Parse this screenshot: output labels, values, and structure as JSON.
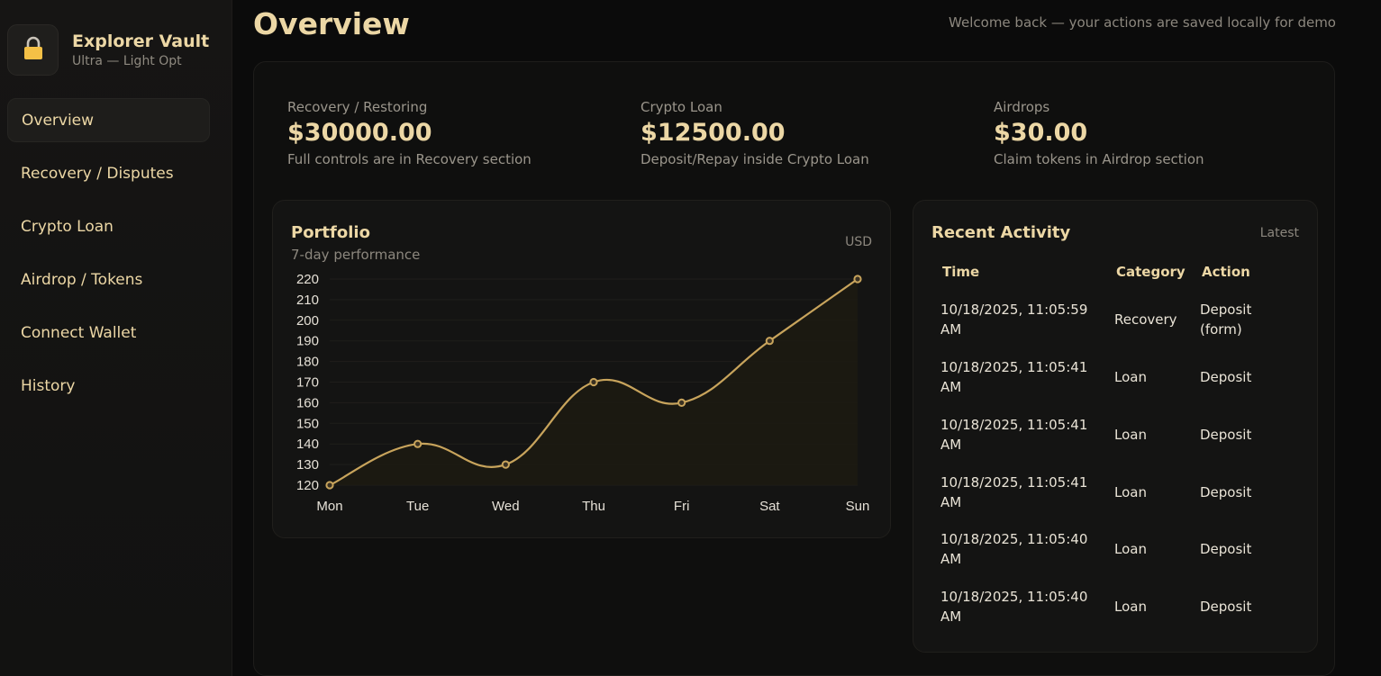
{
  "brand": {
    "name": "Explorer Vault",
    "subtitle": "Ultra — Light Opt",
    "icon": "lock-icon"
  },
  "nav": {
    "items": [
      {
        "label": "Overview",
        "active": true
      },
      {
        "label": "Recovery / Disputes",
        "active": false
      },
      {
        "label": "Crypto Loan",
        "active": false
      },
      {
        "label": "Airdrop / Tokens",
        "active": false
      },
      {
        "label": "Connect Wallet",
        "active": false
      },
      {
        "label": "History",
        "active": false
      }
    ]
  },
  "header": {
    "title": "Overview",
    "welcome": "Welcome back — your actions are saved locally for demo"
  },
  "stats": [
    {
      "label": "Recovery / Restoring",
      "value": "$30000.00",
      "note": "Full controls are in Recovery section"
    },
    {
      "label": "Crypto Loan",
      "value": "$12500.00",
      "note": "Deposit/Repay inside Crypto Loan"
    },
    {
      "label": "Airdrops",
      "value": "$30.00",
      "note": "Claim tokens in Airdrop section"
    }
  ],
  "portfolio": {
    "title": "Portfolio",
    "subtitle": "7-day performance",
    "currency": "USD"
  },
  "chart_data": {
    "type": "line",
    "categories": [
      "Mon",
      "Tue",
      "Wed",
      "Thu",
      "Fri",
      "Sat",
      "Sun"
    ],
    "values": [
      120,
      140,
      130,
      170,
      160,
      190,
      220
    ],
    "ylim": [
      120,
      220
    ],
    "yticks": [
      120,
      130,
      140,
      150,
      160,
      170,
      180,
      190,
      200,
      210,
      220
    ],
    "grid": true,
    "colors": {
      "line": "#c8a45c",
      "fill": "#1c1912"
    }
  },
  "activity": {
    "title": "Recent Activity",
    "tag": "Latest",
    "columns": [
      "Time",
      "Category",
      "Action"
    ],
    "rows": [
      {
        "time": "10/18/2025, 11:05:59 AM",
        "category": "Recovery",
        "action": "Deposit (form)"
      },
      {
        "time": "10/18/2025, 11:05:41 AM",
        "category": "Loan",
        "action": "Deposit"
      },
      {
        "time": "10/18/2025, 11:05:41 AM",
        "category": "Loan",
        "action": "Deposit"
      },
      {
        "time": "10/18/2025, 11:05:41 AM",
        "category": "Loan",
        "action": "Deposit"
      },
      {
        "time": "10/18/2025, 11:05:40 AM",
        "category": "Loan",
        "action": "Deposit"
      },
      {
        "time": "10/18/2025, 11:05:40 AM",
        "category": "Loan",
        "action": "Deposit"
      }
    ]
  },
  "colors": {
    "accent": "#ecd7a5",
    "gold": "#c8a45c",
    "lock": "#f4c046"
  }
}
